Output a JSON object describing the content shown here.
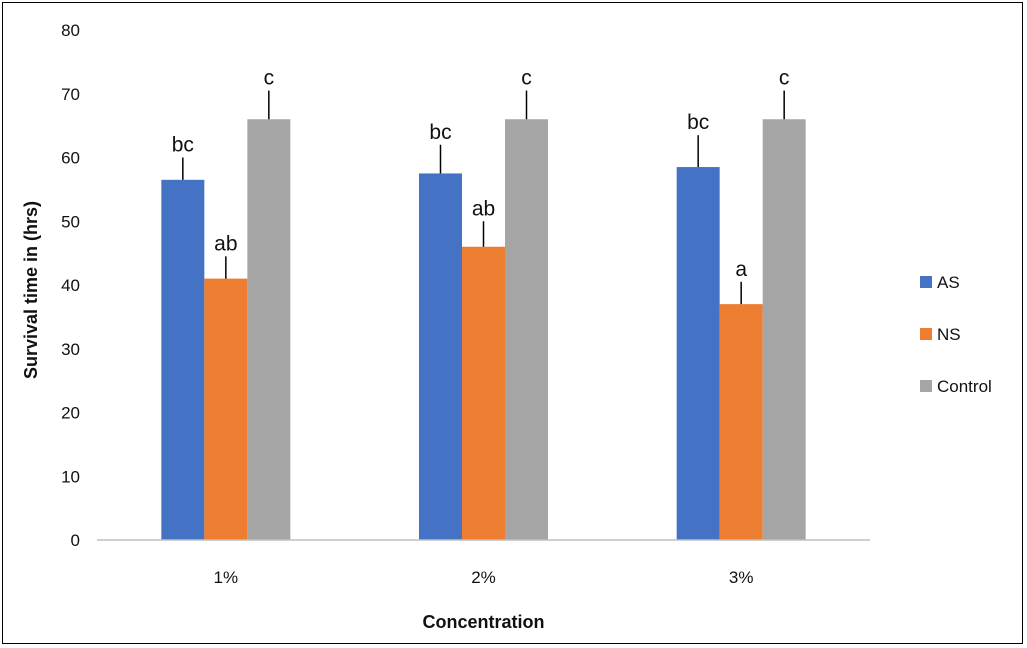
{
  "chart_data": {
    "type": "bar",
    "title": "",
    "xlabel": "Concentration",
    "ylabel": "Survival time in (hrs)",
    "categories": [
      "1%",
      "2%",
      "3%"
    ],
    "ylim": [
      0,
      80
    ],
    "yticks": [
      0,
      10,
      20,
      30,
      40,
      50,
      60,
      70,
      80
    ],
    "grid": false,
    "legend_position": "right",
    "series": [
      {
        "name": "AS",
        "color": "#4472C4",
        "values": [
          56.5,
          57.5,
          58.5
        ],
        "errors": [
          3.5,
          4.5,
          5.0
        ],
        "labels": [
          "bc",
          "bc",
          "bc"
        ]
      },
      {
        "name": "NS",
        "color": "#ED7D31",
        "values": [
          41,
          46,
          37
        ],
        "errors": [
          3.5,
          4.0,
          3.5
        ],
        "labels": [
          "ab",
          "ab",
          "a"
        ]
      },
      {
        "name": "Control",
        "color": "#A5A5A5",
        "values": [
          66,
          66,
          66
        ],
        "errors": [
          4.5,
          4.5,
          4.5
        ],
        "labels": [
          "c",
          "c",
          "c"
        ]
      }
    ]
  }
}
